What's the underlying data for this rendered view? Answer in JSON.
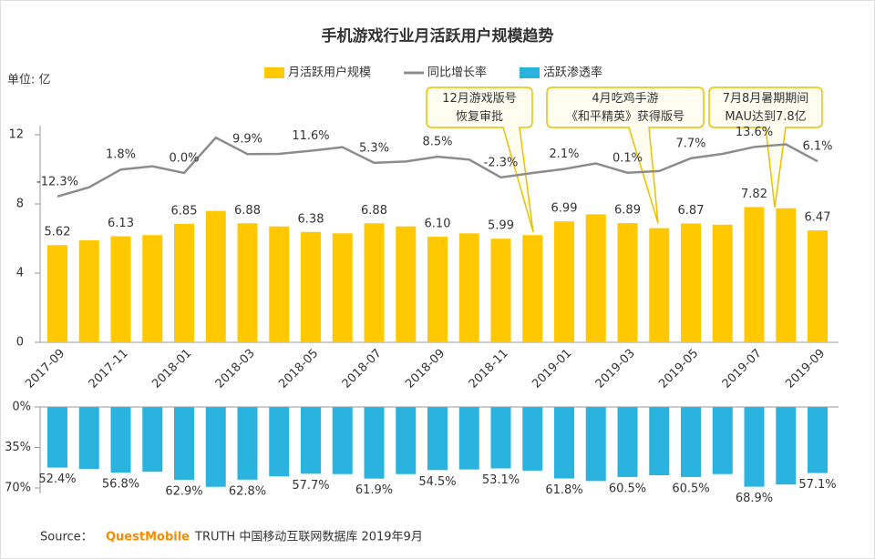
{
  "chart_data": [
    {
      "type": "bar",
      "title": "手机游戏行业月活跃用户规模趋势",
      "y_label": "单位: 亿",
      "categories": [
        "2017-09",
        null,
        "2017-11",
        null,
        "2018-01",
        null,
        "2018-03",
        null,
        "2018-05",
        null,
        "2018-07",
        null,
        "2018-09",
        null,
        "2018-11",
        null,
        "2019-01",
        null,
        "2019-03",
        null,
        "2019-05",
        null,
        "2019-07",
        null,
        "2019-09"
      ],
      "series": [
        {
          "name": "月活跃用户规模",
          "color": "#ffc800",
          "values": [
            5.62,
            5.9,
            6.13,
            6.2,
            6.85,
            7.6,
            6.88,
            6.7,
            6.38,
            6.3,
            6.88,
            6.7,
            6.1,
            6.3,
            5.99,
            6.2,
            6.99,
            7.4,
            6.89,
            6.6,
            6.87,
            6.8,
            7.82,
            7.75,
            6.47
          ],
          "value_labels": [
            "5.62",
            null,
            "6.13",
            null,
            "6.85",
            null,
            "6.88",
            null,
            "6.38",
            null,
            "6.88",
            null,
            "6.10",
            null,
            "5.99",
            null,
            "6.99",
            null,
            "6.89",
            null,
            "6.87",
            null,
            "7.82",
            null,
            "6.47"
          ]
        },
        {
          "name": "同比增长率",
          "color": "#8c8c8c",
          "type": "line",
          "values": [
            -12.3,
            -7.5,
            1.8,
            3.5,
            0.0,
            18.5,
            9.9,
            10,
            11.6,
            13.5,
            5.3,
            6,
            8.5,
            7,
            -2.3,
            0,
            2.1,
            5,
            0.1,
            1,
            7.7,
            10,
            13.6,
            15,
            6.1
          ],
          "value_labels": [
            "-12.3%",
            null,
            "1.8%",
            null,
            "0.0%",
            null,
            "9.9%",
            null,
            "11.6%",
            null,
            "5.3%",
            null,
            "8.5%",
            null,
            "-2.3%",
            null,
            "2.1%",
            null,
            "0.1%",
            null,
            "7.7%",
            null,
            "13.6%",
            null,
            "6.1%"
          ]
        }
      ],
      "ylim": [
        0,
        12
      ],
      "yticks": [
        0,
        4,
        8,
        12
      ],
      "annotations": [
        {
          "lines": [
            "12月游戏版号",
            "恢复审批"
          ]
        },
        {
          "lines": [
            "4月吃鸡手游",
            "《和平精英》获得版号"
          ]
        },
        {
          "lines": [
            "7月8月暑期期间",
            "MAU达到7.8亿"
          ]
        }
      ]
    },
    {
      "type": "bar",
      "series": [
        {
          "name": "活跃渗透率",
          "color": "#2bb3e0",
          "values": [
            52.4,
            53.5,
            56.8,
            56,
            62.9,
            69,
            62.8,
            60,
            57.7,
            58,
            61.9,
            58,
            54.5,
            54,
            53.1,
            55,
            61.8,
            64,
            60.5,
            59,
            60.5,
            58,
            68.9,
            67,
            57.1
          ],
          "value_labels": [
            "52.4%",
            null,
            "56.8%",
            null,
            "62.9%",
            null,
            "62.8%",
            null,
            "57.7%",
            null,
            "61.9%",
            null,
            "54.5%",
            null,
            "53.1%",
            null,
            "61.8%",
            null,
            "60.5%",
            null,
            "60.5%",
            null,
            "68.9%",
            null,
            "57.1%"
          ]
        }
      ],
      "ylim": [
        0,
        70
      ],
      "yticks": [
        {
          "value": 0,
          "label": "0%"
        },
        {
          "value": 35,
          "label": "35%"
        },
        {
          "value": 70,
          "label": "70%"
        }
      ]
    }
  ],
  "source": {
    "prefix": "Source：",
    "brand": "QuestMobile",
    "text": "TRUTH 中国移动互联网数据库 2019年9月"
  }
}
